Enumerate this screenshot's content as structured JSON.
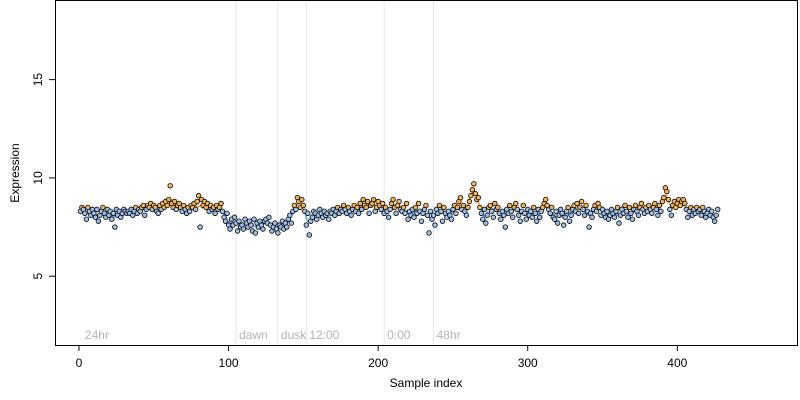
{
  "chart_data": {
    "type": "scatter",
    "xlabel": "Sample index",
    "ylabel": "Expression",
    "xlim": [
      -16,
      480
    ],
    "ylim": [
      1.5,
      19
    ],
    "x_ticks": [
      0,
      100,
      200,
      300,
      400
    ],
    "y_ticks": [
      5,
      10,
      15
    ],
    "grid": false,
    "colors": {
      "point_fill_low": "#9fc0ec",
      "point_fill_high": "#f4b45a",
      "point_stroke": "#000000",
      "trace_low": "#7aa0dc",
      "trace_high": "#f0a040",
      "annotation_line": "#e6e6e6",
      "annotation_text": "#b3b3b3"
    },
    "annotations": [
      {
        "label": "24hr",
        "x": 2
      },
      {
        "label": "dawn",
        "x": 105
      },
      {
        "label": "dusk",
        "x": 133
      },
      {
        "label": "12:00",
        "x": 152
      },
      {
        "label": "0:00",
        "x": 204
      },
      {
        "label": "48hr",
        "x": 237
      }
    ],
    "series": [
      {
        "x_start": 1,
        "x_step": 1,
        "values": [
          8.3,
          8.5,
          8.4,
          8.2,
          7.9,
          8.5,
          8.3,
          8.1,
          8.4,
          8.2,
          8.0,
          8.4,
          7.8,
          8.1,
          8.3,
          8.5,
          8.2,
          8.0,
          8.4,
          8.1,
          8.3,
          7.9,
          8.2,
          7.5,
          8.4,
          8.1,
          8.3,
          8.0,
          8.2,
          8.4,
          8.3,
          8.2,
          8.3,
          8.2,
          8.4,
          8.1,
          8.3,
          8.5,
          8.2,
          8.4,
          8.3,
          8.5,
          8.6,
          8.1,
          8.4,
          8.6,
          8.5,
          8.7,
          8.4,
          8.6,
          8.5,
          8.3,
          8.2,
          8.6,
          8.4,
          8.7,
          8.5,
          8.8,
          8.6,
          8.9,
          9.6,
          8.7,
          8.5,
          8.8,
          8.4,
          8.6,
          8.7,
          8.5,
          8.3,
          8.6,
          8.4,
          8.2,
          8.5,
          8.3,
          8.6,
          8.5,
          8.7,
          8.4,
          8.8,
          9.1,
          7.5,
          8.9,
          8.6,
          8.8,
          8.5,
          8.7,
          8.3,
          8.6,
          8.4,
          8.5,
          8.2,
          8.6,
          8.4,
          8.5,
          8.7,
          8.3,
          8.0,
          7.8,
          8.2,
          7.6,
          7.4,
          7.9,
          7.6,
          8.0,
          7.7,
          7.3,
          7.8,
          7.5,
          7.6,
          7.4,
          7.9,
          7.7,
          7.5,
          7.8,
          7.6,
          7.3,
          7.9,
          7.2,
          7.7,
          7.5,
          7.8,
          7.6,
          7.4,
          7.8,
          7.9,
          7.7,
          8.0,
          7.6,
          7.3,
          7.5,
          7.7,
          7.4,
          7.2,
          7.6,
          7.5,
          7.8,
          7.4,
          7.7,
          7.5,
          7.9,
          8.1,
          7.7,
          8.3,
          8.6,
          8.4,
          9.0,
          8.8,
          8.5,
          8.9,
          8.6,
          8.3,
          7.6,
          8.2,
          7.1,
          7.8,
          8.0,
          8.3,
          8.2,
          7.9,
          8.1,
          8.4,
          8.2,
          8.0,
          8.3,
          8.1,
          8.2,
          7.9,
          8.3,
          8.2,
          8.4,
          8.1,
          8.3,
          8.5,
          8.2,
          8.4,
          8.3,
          8.6,
          8.4,
          8.2,
          8.5,
          8.3,
          8.1,
          8.4,
          8.6,
          8.3,
          8.5,
          8.2,
          8.7,
          8.4,
          8.9,
          8.6,
          8.5,
          8.8,
          8.2,
          8.6,
          8.7,
          8.9,
          8.3,
          8.5,
          8.8,
          8.6,
          8.4,
          8.7,
          8.2,
          8.5,
          8.3,
          8.0,
          8.4,
          8.7,
          8.9,
          8.5,
          8.2,
          8.6,
          8.8,
          8.4,
          8.3,
          8.5,
          8.2,
          8.7,
          7.9,
          8.3,
          8.1,
          8.4,
          8.0,
          8.5,
          8.2,
          8.7,
          8.3,
          7.8,
          8.2,
          8.4,
          8.6,
          8.1,
          7.2,
          8.3,
          7.9,
          8.1,
          7.6,
          8.4,
          8.2,
          8.6,
          8.3,
          7.8,
          8.5,
          8.2,
          8.0,
          8.3,
          8.1,
          7.9,
          8.4,
          8.6,
          8.2,
          8.5,
          8.8,
          9.0,
          8.4,
          8.6,
          8.3,
          8.1,
          8.5,
          8.8,
          9.1,
          9.4,
          9.7,
          9.2,
          8.9,
          9.0,
          8.5,
          8.2,
          7.9,
          8.4,
          7.7,
          8.1,
          8.5,
          8.6,
          8.3,
          8.0,
          8.7,
          8.4,
          8.5,
          8.2,
          7.9,
          8.3,
          8.1,
          7.5,
          8.4,
          8.2,
          8.6,
          8.3,
          8.0,
          8.5,
          8.7,
          8.4,
          8.1,
          7.8,
          8.3,
          8.6,
          8.2,
          7.9,
          8.4,
          8.1,
          8.3,
          8.0,
          8.5,
          8.2,
          7.8,
          8.4,
          8.0,
          8.3,
          8.5,
          8.7,
          8.9,
          8.6,
          8.4,
          8.2,
          8.5,
          8.0,
          7.9,
          8.3,
          7.7,
          8.1,
          8.4,
          8.2,
          7.6,
          8.0,
          8.3,
          8.5,
          7.8,
          8.1,
          8.4,
          8.6,
          8.3,
          8.7,
          8.2,
          8.5,
          8.8,
          8.4,
          8.1,
          8.6,
          8.3,
          7.5,
          8.2,
          8.0,
          8.4,
          8.6,
          8.3,
          8.7,
          8.5,
          8.1,
          8.4,
          8.2,
          8.0,
          8.3,
          7.9,
          8.1,
          8.4,
          8.2,
          8.0,
          8.3,
          8.5,
          7.7,
          8.1,
          8.4,
          8.2,
          8.6,
          8.3,
          8.0,
          8.5,
          8.2,
          7.9,
          8.4,
          8.6,
          8.3,
          8.1,
          8.5,
          8.7,
          8.4,
          8.2,
          8.5,
          8.3,
          8.6,
          8.4,
          8.2,
          8.5,
          8.7,
          8.4,
          8.1,
          8.6,
          8.3,
          8.8,
          9.0,
          9.5,
          9.3,
          8.9,
          8.4,
          8.1,
          8.6,
          8.8,
          8.5,
          8.7,
          8.9,
          8.6,
          8.8,
          8.9,
          8.7,
          8.4,
          8.0,
          8.3,
          8.5,
          8.1,
          8.4,
          8.2,
          8.5,
          8.3,
          8.4,
          8.1,
          8.5,
          8.3,
          8.0,
          8.2,
          8.4,
          8.1,
          8.3,
          8.0,
          7.8,
          8.1,
          8.4
        ]
      }
    ]
  }
}
